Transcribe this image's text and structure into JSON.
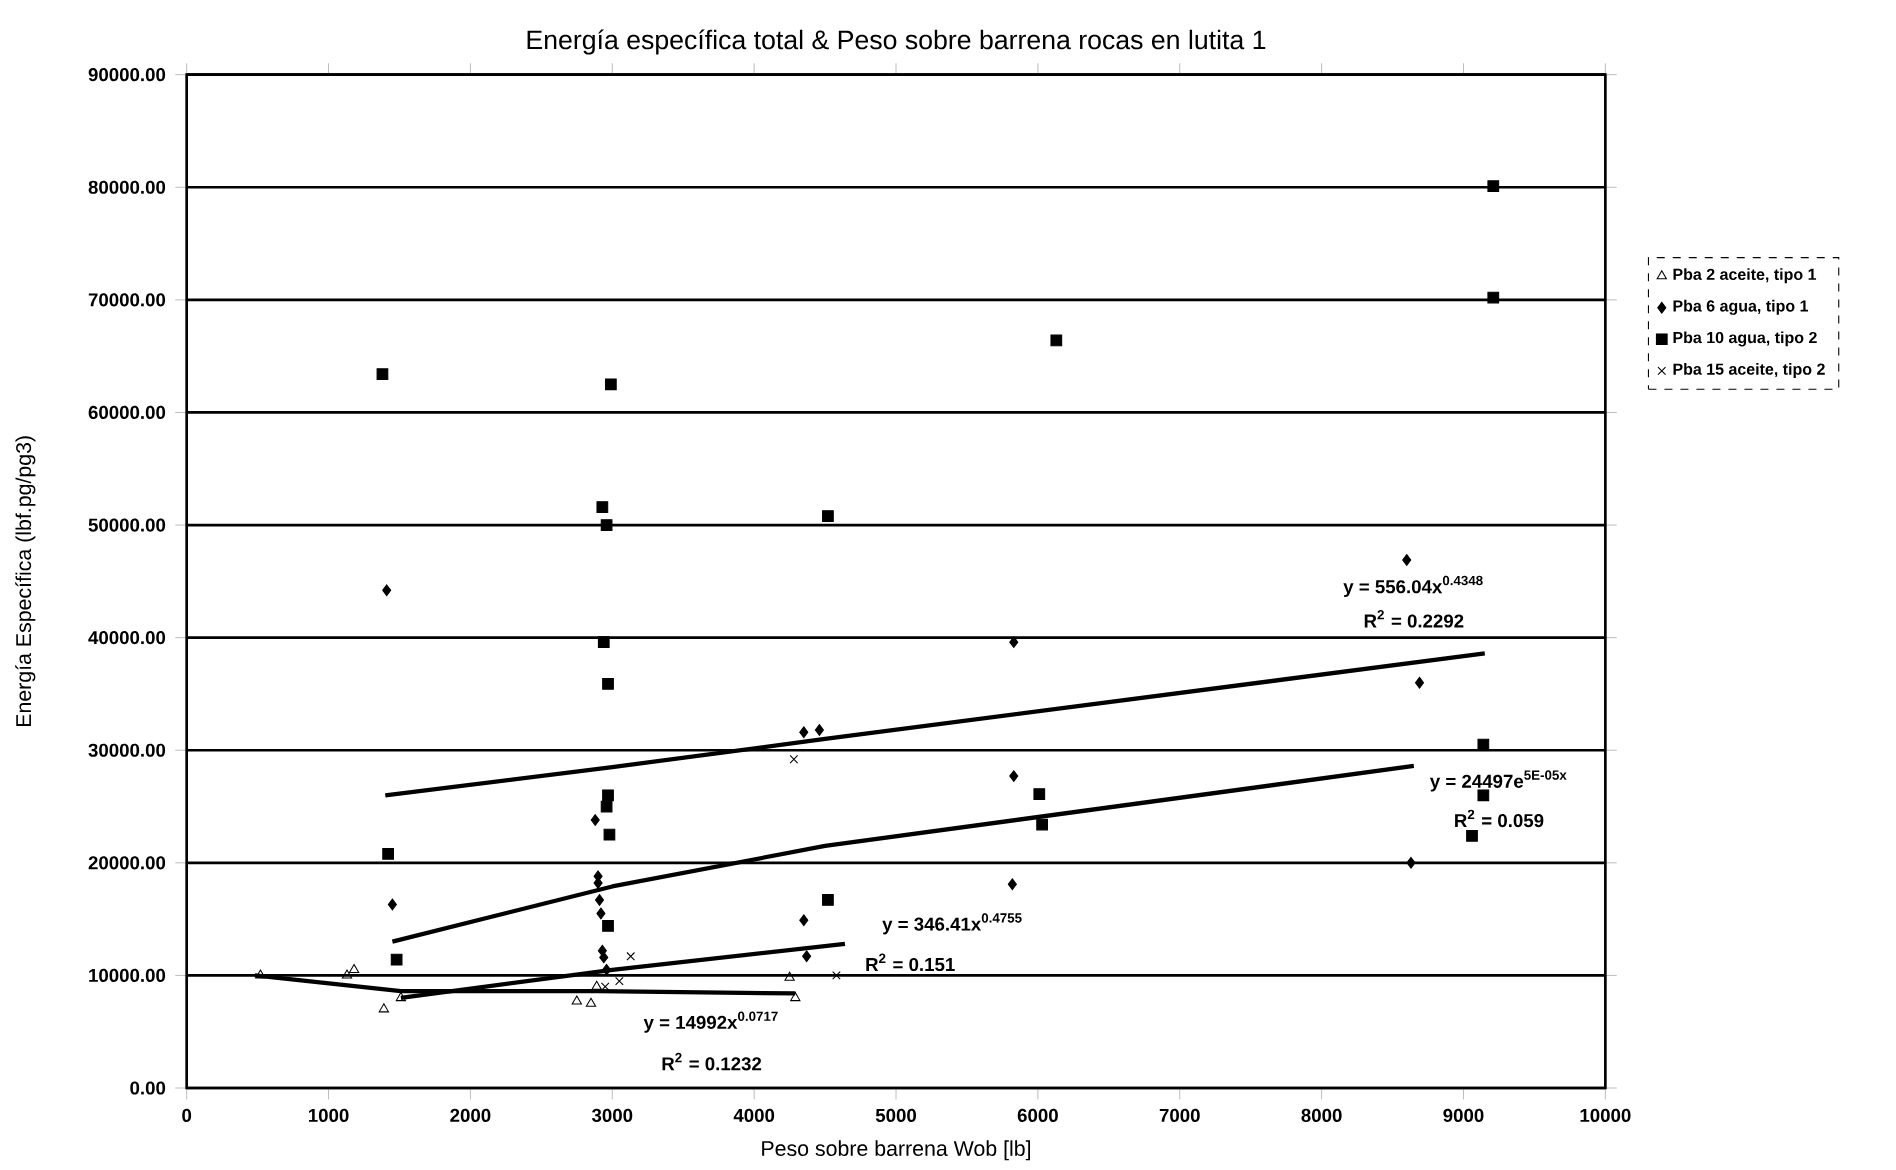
{
  "chart_data": {
    "type": "scatter",
    "title": "Energía específica total  & Peso sobre barrena rocas en lutita 1",
    "xlabel": "Peso  sobre barrena Wob [lb]",
    "ylabel": "Energía Específica (lbf.pg/pg3)",
    "xlim": [
      0,
      10000
    ],
    "xticks": [
      0,
      1000,
      2000,
      3000,
      4000,
      5000,
      6000,
      7000,
      8000,
      9000,
      10000
    ],
    "ylim": [
      0,
      90000
    ],
    "yticks": [
      {
        "value": 0,
        "label": "0.00"
      },
      {
        "value": 10000,
        "label": "10000.00"
      },
      {
        "value": 20000,
        "label": "20000.00"
      },
      {
        "value": 30000,
        "label": "30000.00"
      },
      {
        "value": 40000,
        "label": "40000.00"
      },
      {
        "value": 50000,
        "label": "50000.00"
      },
      {
        "value": 60000,
        "label": "60000.00"
      },
      {
        "value": 70000,
        "label": "70000.00"
      },
      {
        "value": 80000,
        "label": "80000.00"
      },
      {
        "value": 90000,
        "label": "90000.00"
      }
    ],
    "grid": "y",
    "legend": "right",
    "series": [
      {
        "name": "Pba 2 aceite, tipo 1",
        "color": "#000000",
        "marker": "triangle",
        "x": [
          520,
          1130,
          1180,
          1390,
          1510,
          2750,
          2850,
          2890,
          4250,
          4290
        ],
        "values": [
          10000,
          10000,
          10500,
          7000,
          8000,
          7700,
          7500,
          9000,
          9800,
          8000
        ]
      },
      {
        "name": "Pba 6 agua, tipo 1",
        "color": "#000000",
        "marker": "diamond",
        "x": [
          1410,
          1450,
          2900,
          2900,
          2910,
          2920,
          2930,
          2940,
          2960,
          2880,
          4350,
          4460,
          4350,
          4370,
          5830,
          8690,
          5830,
          8630,
          5820,
          8600
        ],
        "values": [
          44200,
          16300,
          18800,
          18200,
          16700,
          15500,
          12200,
          11600,
          10500,
          23800,
          31600,
          31800,
          14900,
          11700,
          39600,
          36000,
          27700,
          20000,
          18100,
          46900
        ]
      },
      {
        "name": "Pba 10 agua, tipo 2",
        "color": "#000000",
        "marker": "square",
        "x": [
          1380,
          2990,
          6130,
          9210,
          9210,
          2930,
          2960,
          4520,
          2940,
          2970,
          2970,
          2960,
          2980,
          1420,
          1480,
          2970,
          4520,
          6010,
          6030,
          9140,
          9140,
          9060
        ],
        "values": [
          63400,
          62500,
          66400,
          80100,
          70200,
          51600,
          50000,
          50800,
          39600,
          35900,
          26000,
          25000,
          22500,
          20800,
          11400,
          14400,
          16700,
          26100,
          23400,
          30500,
          26000,
          22400
        ]
      },
      {
        "name": "Pba 15 aceite, tipo 2",
        "color": "#000000",
        "marker": "cross",
        "x": [
          4280,
          3130,
          4580,
          2950,
          3050
        ],
        "values": [
          29200,
          11700,
          10000,
          9000,
          9500
        ]
      },
      {
        "type": "line",
        "color": "#000000",
        "marker": "none",
        "x": [
          1400,
          3000,
          4500,
          9150
        ],
        "values": [
          26000,
          28500,
          31000,
          38600
        ]
      },
      {
        "type": "line",
        "color": "#000000",
        "marker": "none",
        "x": [
          1450,
          3000,
          4500,
          8650
        ],
        "values": [
          13000,
          17900,
          21500,
          28600
        ]
      },
      {
        "type": "line",
        "color": "#000000",
        "marker": "none",
        "x": [
          480,
          1510,
          2900,
          4290
        ],
        "values": [
          10000,
          8600,
          8600,
          8400
        ]
      },
      {
        "type": "line",
        "color": "#000000",
        "marker": "none",
        "x": [
          1510,
          3000,
          4640
        ],
        "values": [
          8000,
          10500,
          12800
        ]
      }
    ],
    "annotations": [
      "y = 556.04x$^{0.4348}$",
      "R$^{2}$ = 0.2292",
      "y = 24497e$^{5E-05x}$",
      "R$^{2}$ = 0.059",
      "y = 346.41x$^{0.4755}$",
      "R$^{2}$ = 0.151",
      "y = 14992x$^{0.0717}$",
      "R$^{2}$ = 0.1232"
    ]
  }
}
